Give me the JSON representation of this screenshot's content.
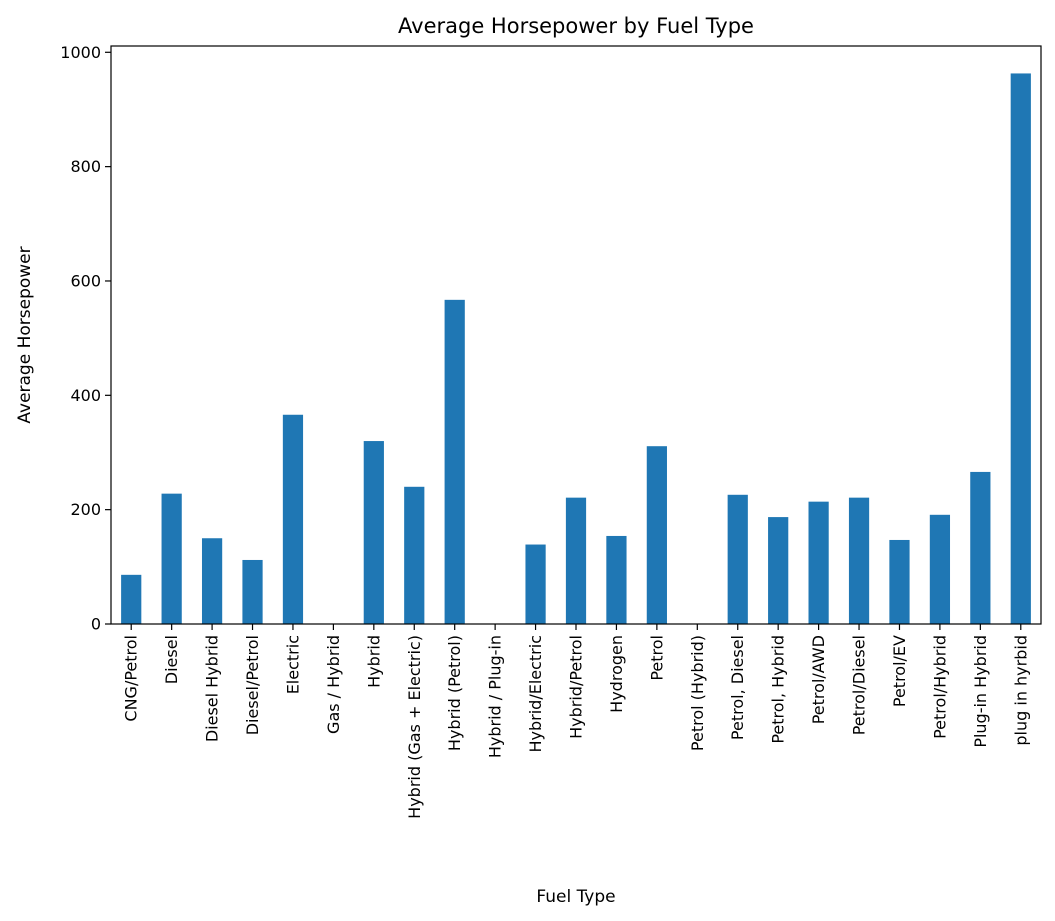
{
  "chart_data": {
    "type": "bar",
    "title": "Average Horsepower by Fuel Type",
    "xlabel": "Fuel Type",
    "ylabel": "Average Horsepower",
    "categories": [
      "CNG/Petrol",
      "Diesel",
      "Diesel Hybrid",
      "Diesel/Petrol",
      "Electric",
      "Gas / Hybrid",
      "Hybrid",
      "Hybrid (Gas + Electric)",
      "Hybrid (Petrol)",
      "Hybrid / Plug-in",
      "Hybrid/Electric",
      "Hybrid/Petrol",
      "Hydrogen",
      "Petrol",
      "Petrol (Hybrid)",
      "Petrol, Diesel",
      "Petrol, Hybrid",
      "Petrol/AWD",
      "Petrol/Diesel",
      "Petrol/EV",
      "Petrol/Hybrid",
      "Plug-in Hybrid",
      "plug in hyrbid"
    ],
    "values": [
      86,
      228,
      150,
      112,
      366,
      0,
      320,
      240,
      567,
      0,
      139,
      221,
      154,
      311,
      0,
      226,
      187,
      214,
      221,
      147,
      191,
      266,
      963
    ],
    "yticks": [
      0,
      200,
      400,
      600,
      800,
      1000
    ],
    "ylim": [
      0,
      1011
    ],
    "bar_color": "#1f77b4",
    "grid": false,
    "legend": "none"
  }
}
